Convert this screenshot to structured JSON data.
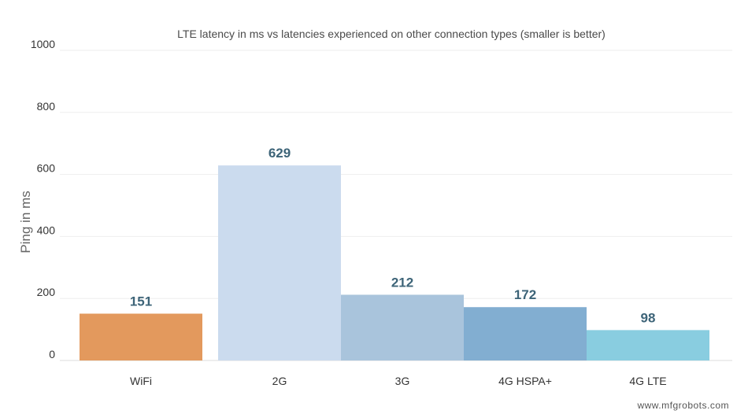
{
  "watermark": "www.mfgrobots.com",
  "chart_data": {
    "type": "bar",
    "title": "LTE latency in ms vs latencies experienced on other connection types (smaller is better)",
    "xlabel": "",
    "ylabel": "Ping in ms",
    "ylim": [
      0,
      1000
    ],
    "yticks": [
      0,
      200,
      400,
      600,
      800,
      1000
    ],
    "grid": true,
    "legend": "none",
    "categories": [
      "WiFi",
      "2G",
      "3G",
      "4G HSPA+",
      "4G LTE"
    ],
    "values": [
      151,
      629,
      212,
      172,
      98
    ],
    "data_labels": [
      "151",
      "629",
      "212",
      "172",
      "98"
    ],
    "colors": [
      "#e3995d",
      "#cbdbee",
      "#a9c4dc",
      "#82aed1",
      "#89cde0"
    ],
    "value_label_color": "#3d6478"
  }
}
